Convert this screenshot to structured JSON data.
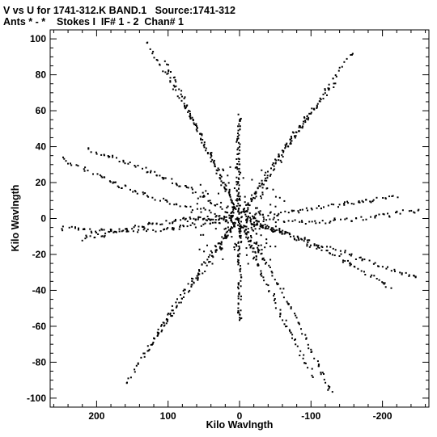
{
  "header": {
    "line1": "V vs U for 1741-312.K BAND.1   Source:1741-312",
    "line2": "Ants * - *    Stokes I  IF# 1 - 2  Chan# 1"
  },
  "chart_data": {
    "type": "scatter",
    "title": "V vs U for 1741-312.K BAND.1   Source:1741-312",
    "subtitle": "Ants * - *    Stokes I  IF# 1 - 2  Chan# 1",
    "xlabel": "Kilo Wavlngth",
    "ylabel": "Kilo Wavlngth",
    "xlim": [
      265,
      -265
    ],
    "ylim": [
      -105,
      105
    ],
    "x_reversed": true,
    "x_ticks": [
      200,
      100,
      0,
      -100,
      -200
    ],
    "y_ticks": [
      100,
      80,
      60,
      40,
      20,
      0,
      -20,
      -40,
      -60,
      -80,
      -100
    ],
    "x_tick_labels": [
      "200",
      "100",
      "0",
      "-100",
      "-200"
    ],
    "y_tick_labels": [
      "100",
      "80",
      "60",
      "40",
      "20",
      "0",
      "-20",
      "-40",
      "-60",
      "-80",
      "-100"
    ],
    "grid": false,
    "marker": "dot",
    "arms": [
      {
        "u": 0,
        "v": 57
      },
      {
        "u": 0,
        "v": -57
      },
      {
        "u": 128,
        "v": 97
      },
      {
        "u": -128,
        "v": -97
      },
      {
        "u": -157,
        "v": 92
      },
      {
        "u": 157,
        "v": -92
      },
      {
        "u": 248,
        "v": 33
      },
      {
        "u": -248,
        "v": -33
      },
      {
        "u": -250,
        "v": 5
      },
      {
        "u": 250,
        "v": -5
      },
      {
        "u": 104,
        "v": 88
      },
      {
        "u": -104,
        "v": -88
      },
      {
        "u": -133,
        "v": 75
      },
      {
        "u": 133,
        "v": -75
      },
      {
        "u": 210,
        "v": 38
      },
      {
        "u": -210,
        "v": -38
      },
      {
        "u": -220,
        "v": 12
      },
      {
        "u": 220,
        "v": -12
      }
    ]
  }
}
